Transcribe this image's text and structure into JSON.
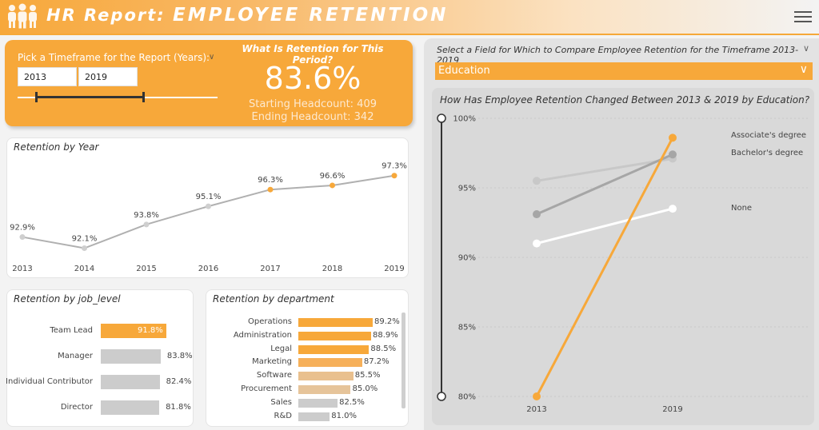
{
  "header": {
    "title_prefix": "HR Report:",
    "title_main": "EMPLOYEE RETENTION",
    "logo_icon": "people-group-icon",
    "menu_icon": "hamburger-menu-icon"
  },
  "timeframe": {
    "label": "Pick a Timeframe for the Report (Years):",
    "start_year": "2013",
    "end_year": "2019"
  },
  "retention_summary": {
    "question": "What Is Retention for This Period?",
    "value": "83.6%",
    "starting_headcount": "Starting Headcount: 409",
    "ending_headcount": "Ending Headcount: 342"
  },
  "colors": {
    "accent": "#f7a83a",
    "header_gradient_end": "#f3f3f3",
    "gray_bar": "#cccccc",
    "gray_line": "#b0b0b0"
  },
  "compare": {
    "question": "Select a Field for Which to Compare Employee Retention for the Timeframe 2013-2019",
    "selected_field": "Education",
    "chart_title": "How Has Employee Retention Changed Between 2013 & 2019 by Education?"
  },
  "chart_data": [
    {
      "type": "line",
      "title": "Retention by Year",
      "x": [
        "2013",
        "2014",
        "2015",
        "2016",
        "2017",
        "2018",
        "2019"
      ],
      "series": [
        {
          "values": [
            92.9,
            92.1,
            93.8,
            95.1,
            96.3,
            96.6,
            97.3
          ]
        }
      ],
      "data_labels": [
        "92.9%",
        "92.1%",
        "93.8%",
        "95.1%",
        "96.3%",
        "96.6%",
        "97.3%"
      ],
      "highlighted": [
        false,
        false,
        false,
        false,
        true,
        true,
        true
      ],
      "ylim": [
        91.5,
        97.8
      ]
    },
    {
      "type": "bar",
      "orientation": "horizontal",
      "title": "Retention by job_level",
      "categories": [
        "Team Lead",
        "Manager",
        "Individual Contributor",
        "Director"
      ],
      "values": [
        91.8,
        83.8,
        82.4,
        81.8
      ],
      "data_labels": [
        "91.8%",
        "83.8%",
        "82.4%",
        "81.8%"
      ],
      "highlighted": [
        true,
        false,
        false,
        false
      ]
    },
    {
      "type": "bar",
      "orientation": "horizontal",
      "title": "Retention by department",
      "categories": [
        "Operations",
        "Administration",
        "Legal",
        "Marketing",
        "Software",
        "Procurement",
        "Sales",
        "R&D"
      ],
      "values": [
        89.2,
        88.9,
        88.5,
        87.2,
        85.5,
        85.0,
        82.5,
        81.0
      ],
      "data_labels": [
        "89.2%",
        "88.9%",
        "88.5%",
        "87.2%",
        "85.5%",
        "85.0%",
        "82.5%",
        "81.0%"
      ],
      "bar_colors": [
        "#f7a83a",
        "#f7a83a",
        "#f7a83a",
        "#f6b05a",
        "#e9c08e",
        "#e6c49a",
        "#cccccc",
        "#cccccc"
      ]
    },
    {
      "type": "line",
      "title": "How Has Employee Retention Changed Between 2013 & 2019 by Education?",
      "x": [
        "2013",
        "2019"
      ],
      "yticks": [
        "100%",
        "95%",
        "90%",
        "85%",
        "80%"
      ],
      "ylim": [
        80,
        100
      ],
      "series": [
        {
          "name": "Associate's degree",
          "values": [
            80.0,
            98.6
          ],
          "color": "#f7a83a"
        },
        {
          "name": "Bachelor's degree",
          "values": [
            93.1,
            97.4
          ],
          "color": "#a6a6a6"
        },
        {
          "values": [
            95.5,
            97.1
          ],
          "color": "#c8c8c8"
        },
        {
          "name": "None",
          "values": [
            91.0,
            93.5
          ],
          "color": "#ffffff"
        }
      ]
    }
  ]
}
